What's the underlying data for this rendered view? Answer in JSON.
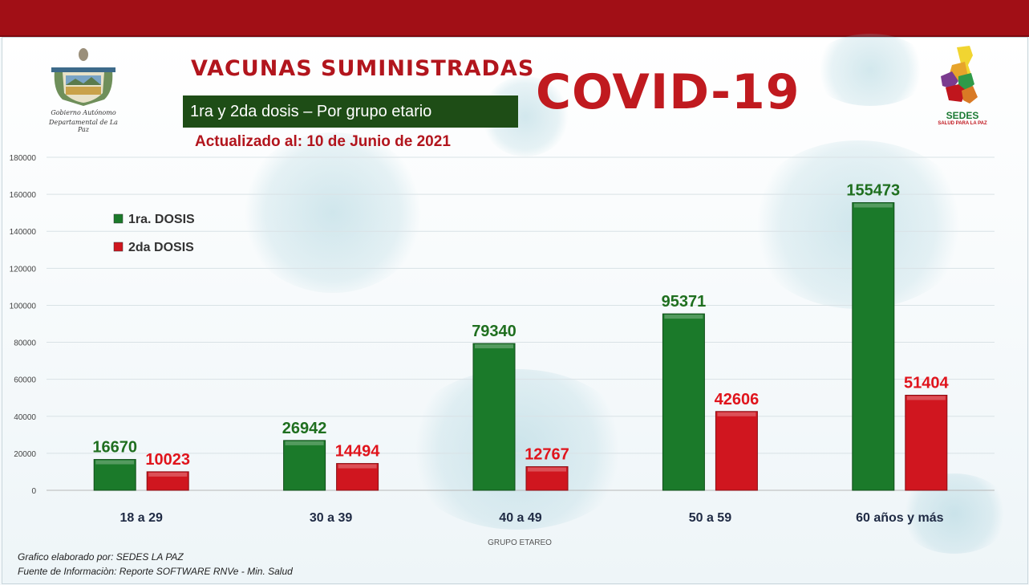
{
  "header": {
    "title": "VACUNAS  SUMINISTRADAS",
    "subtitle": "1ra y 2da dosis – Por grupo etario",
    "updated": "Actualizado al: 10 de Junio de 2021",
    "covid_title": "COVID-19"
  },
  "logos": {
    "left_line1": "Gobierno Autónomo",
    "left_line2": "Departamental de La Paz",
    "right_label": "SEDES",
    "right_sub": "SALUD PARA LA PAZ"
  },
  "footer": {
    "credit1": "Grafico elaborado por: SEDES LA PAZ",
    "credit2": "Fuente de Informaciòn: Reporte SOFTWARE RNVe - Min. Salud"
  },
  "colors": {
    "dose1": "#1b7a2a",
    "dose2": "#d0161f",
    "label1": "#1f6f1f",
    "label2": "#e0141c",
    "accent": "#a10f16"
  },
  "chart_data": {
    "type": "bar",
    "categories": [
      "18 a 29",
      "30 a 39",
      "40 a 49",
      "50 a 59",
      "60 años  y más"
    ],
    "series": [
      {
        "name": "1ra. DOSIS",
        "values": [
          16670,
          26942,
          79340,
          95371,
          155473
        ]
      },
      {
        "name": "2da DOSIS",
        "values": [
          10023,
          14494,
          12767,
          42606,
          51404
        ]
      }
    ],
    "xlabel": "GRUPO ETAREO",
    "ylabel": "",
    "ylim": [
      0,
      180000
    ],
    "yticks": [
      "0",
      "20000",
      "40000",
      "60000",
      "80000",
      "100000",
      "120000",
      "140000",
      "160000",
      "180000"
    ],
    "grid": true,
    "legend_position": "top-left"
  }
}
